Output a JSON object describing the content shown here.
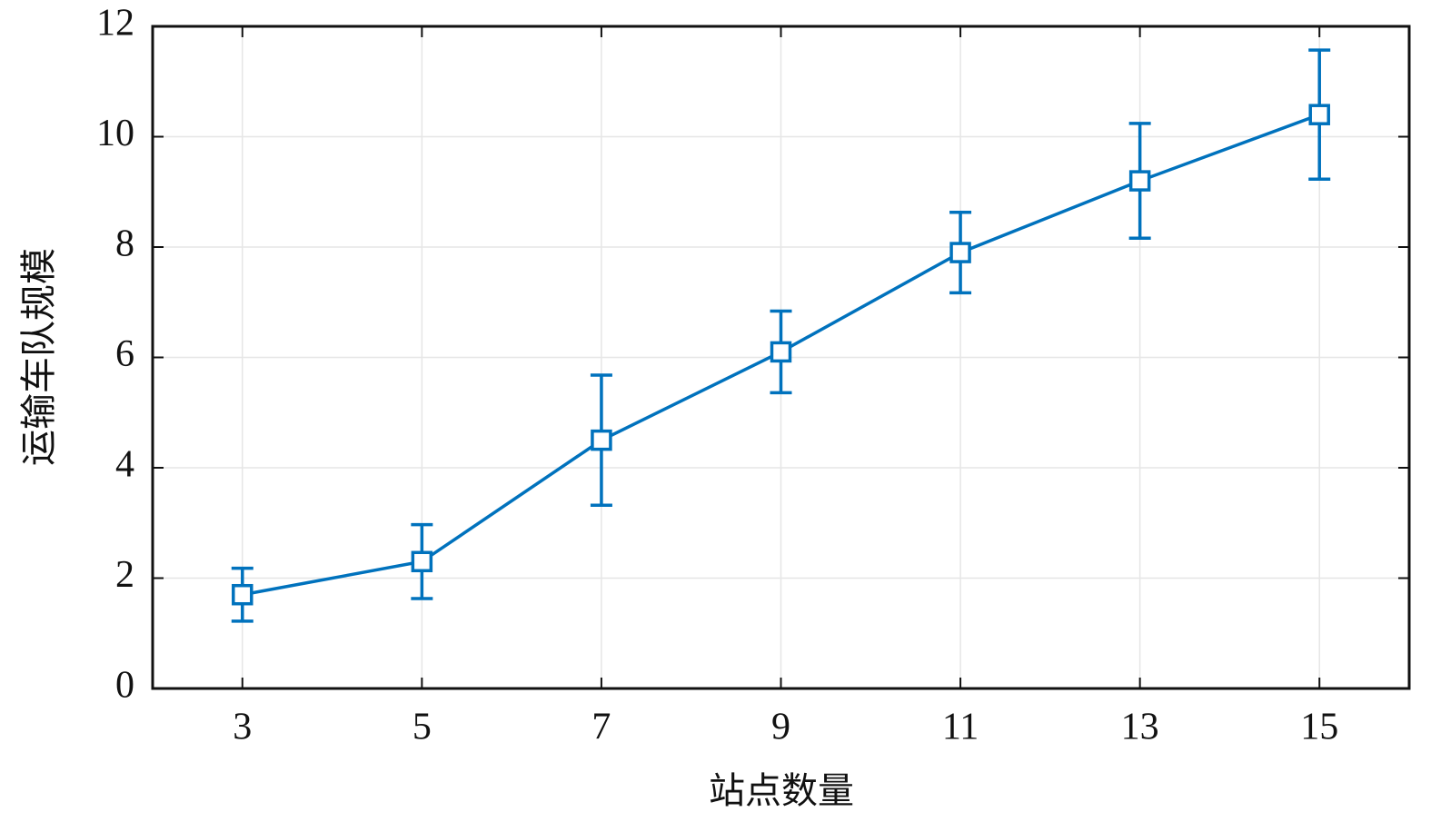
{
  "chart_data": {
    "type": "line",
    "xlabel": "站点数量",
    "ylabel": "运输车队规模",
    "x": [
      3,
      5,
      7,
      9,
      11,
      13,
      15
    ],
    "values": [
      1.7,
      2.3,
      4.5,
      6.1,
      7.9,
      9.2,
      10.4
    ],
    "errors": [
      0.48,
      0.67,
      1.18,
      0.74,
      0.73,
      1.04,
      1.17
    ],
    "color": "#0072bd",
    "xlim": [
      2,
      16
    ],
    "xticks": [
      3,
      5,
      7,
      9,
      11,
      13,
      15
    ],
    "ylim": [
      0,
      12
    ],
    "yticks": [
      0,
      2,
      4,
      6,
      8,
      10,
      12
    ],
    "grid": true
  }
}
